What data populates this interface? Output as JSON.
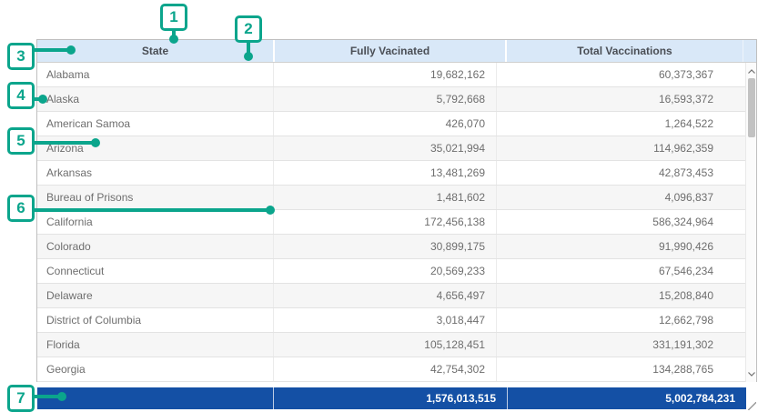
{
  "table": {
    "columns": [
      {
        "label": "State"
      },
      {
        "label": "Fully Vacinated"
      },
      {
        "label": "Total Vaccinations"
      }
    ],
    "rows": [
      [
        "Alabama",
        "19,682,162",
        "60,373,367"
      ],
      [
        "Alaska",
        "5,792,668",
        "16,593,372"
      ],
      [
        "American Samoa",
        "426,070",
        "1,264,522"
      ],
      [
        "Arizona",
        "35,021,994",
        "114,962,359"
      ],
      [
        "Arkansas",
        "13,481,269",
        "42,873,453"
      ],
      [
        "Bureau of Prisons",
        "1,481,602",
        "4,096,837"
      ],
      [
        "California",
        "172,456,138",
        "586,324,964"
      ],
      [
        "Colorado",
        "30,899,175",
        "91,990,426"
      ],
      [
        "Connecticut",
        "20,569,233",
        "67,546,234"
      ],
      [
        "Delaware",
        "4,656,497",
        "15,208,840"
      ],
      [
        "District of Columbia",
        "3,018,447",
        "12,662,798"
      ],
      [
        "Florida",
        "105,128,451",
        "331,191,302"
      ],
      [
        "Georgia",
        "42,754,302",
        "134,288,765"
      ]
    ],
    "summary": {
      "state": "",
      "fully_vaccinated": "1,576,013,515",
      "total_vaccinations": "5,002,784,231"
    }
  },
  "callouts": [
    {
      "label": "1"
    },
    {
      "label": "2"
    },
    {
      "label": "3"
    },
    {
      "label": "4"
    },
    {
      "label": "5"
    },
    {
      "label": "6"
    },
    {
      "label": "7"
    }
  ],
  "colors": {
    "accent_teal": "#0ba58c",
    "header_bg": "#d9e8f8",
    "summary_bg": "#1450a5",
    "alt_row_bg": "#f6f6f6",
    "row_text": "#6e6e6e",
    "header_text": "#4a4e55"
  }
}
